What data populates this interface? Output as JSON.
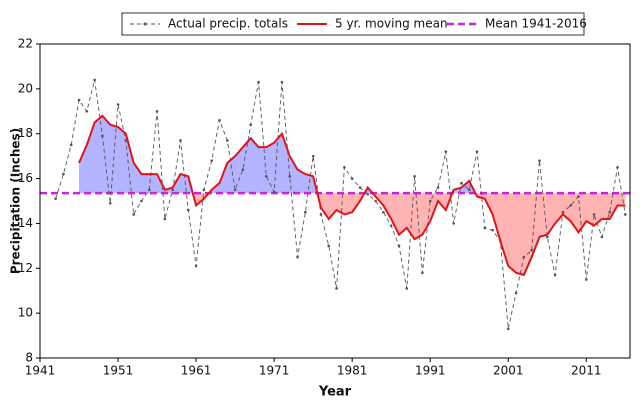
{
  "chart_data": {
    "type": "line",
    "x_label": "Year",
    "y_label": "Precipitation (Inches)",
    "x": [
      1941,
      1942,
      1943,
      1944,
      1945,
      1946,
      1947,
      1948,
      1949,
      1950,
      1951,
      1952,
      1953,
      1954,
      1955,
      1956,
      1957,
      1958,
      1959,
      1960,
      1961,
      1962,
      1963,
      1964,
      1965,
      1966,
      1967,
      1968,
      1969,
      1970,
      1971,
      1972,
      1973,
      1974,
      1975,
      1976,
      1977,
      1978,
      1979,
      1980,
      1981,
      1982,
      1983,
      1984,
      1985,
      1986,
      1987,
      1988,
      1989,
      1990,
      1991,
      1992,
      1993,
      1994,
      1995,
      1996,
      1997,
      1998,
      1999,
      2000,
      2001,
      2002,
      2003,
      2004,
      2005,
      2006,
      2007,
      2008,
      2009,
      2010,
      2011,
      2012,
      2013,
      2014,
      2015,
      2016
    ],
    "series": [
      {
        "name": "Actual precip. totals",
        "color": "#555555",
        "style": "dashed-dots",
        "values": [
          null,
          null,
          15.1,
          16.2,
          17.5,
          19.5,
          19.0,
          20.4,
          17.9,
          14.9,
          19.3,
          17.7,
          14.4,
          15.0,
          15.5,
          19.0,
          14.2,
          15.5,
          17.7,
          14.6,
          12.1,
          15.5,
          16.8,
          18.6,
          17.7,
          15.5,
          16.4,
          18.4,
          20.3,
          16.1,
          15.4,
          20.3,
          16.1,
          12.5,
          14.5,
          17.0,
          14.4,
          13.0,
          11.1,
          16.5,
          16.0,
          15.6,
          15.3,
          15.0,
          14.5,
          13.9,
          13.0,
          11.1,
          16.1,
          11.8,
          15.0,
          15.6,
          17.2,
          14.0,
          15.8,
          15.5,
          17.2,
          13.8,
          13.7,
          13.2,
          9.3,
          10.9,
          12.5,
          12.8,
          16.8,
          13.4,
          11.7,
          14.5,
          14.8,
          15.2,
          11.5,
          14.4,
          13.4,
          14.5,
          16.5,
          14.4
        ]
      },
      {
        "name": "5 yr. moving mean",
        "color": "#e0151b",
        "style": "solid",
        "values": [
          null,
          null,
          null,
          null,
          null,
          16.7,
          17.5,
          18.5,
          18.8,
          18.4,
          18.3,
          18.0,
          16.7,
          16.2,
          16.2,
          16.2,
          15.5,
          15.6,
          16.2,
          16.1,
          14.8,
          15.1,
          15.5,
          15.8,
          16.7,
          17.0,
          17.4,
          17.8,
          17.4,
          17.4,
          17.6,
          18.0,
          17.0,
          16.4,
          16.2,
          16.1,
          14.7,
          14.2,
          14.6,
          14.4,
          14.5,
          15.0,
          15.6,
          15.2,
          14.8,
          14.2,
          13.5,
          13.8,
          13.3,
          13.5,
          14.1,
          15.0,
          14.6,
          15.5,
          15.6,
          15.9,
          15.2,
          15.1,
          14.4,
          13.2,
          12.1,
          11.8,
          11.7,
          12.5,
          13.4,
          13.5,
          14.0,
          14.4,
          14.1,
          13.6,
          14.1,
          13.9,
          14.2,
          14.2,
          14.8,
          14.8
        ]
      }
    ],
    "reference_line": {
      "name": "Mean 1941-2016",
      "value": 15.35,
      "color": "#cc22dd"
    },
    "fill_above_color": "#b3b3ff",
    "fill_below_color": "#ffb3b3",
    "xlim": [
      1941,
      2016.6
    ],
    "xticks": [
      1941,
      1951,
      1961,
      1971,
      1981,
      1991,
      2001,
      2011
    ],
    "ylim": [
      8,
      22
    ],
    "yticks": [
      8,
      10,
      12,
      14,
      16,
      18,
      20,
      22
    ]
  }
}
